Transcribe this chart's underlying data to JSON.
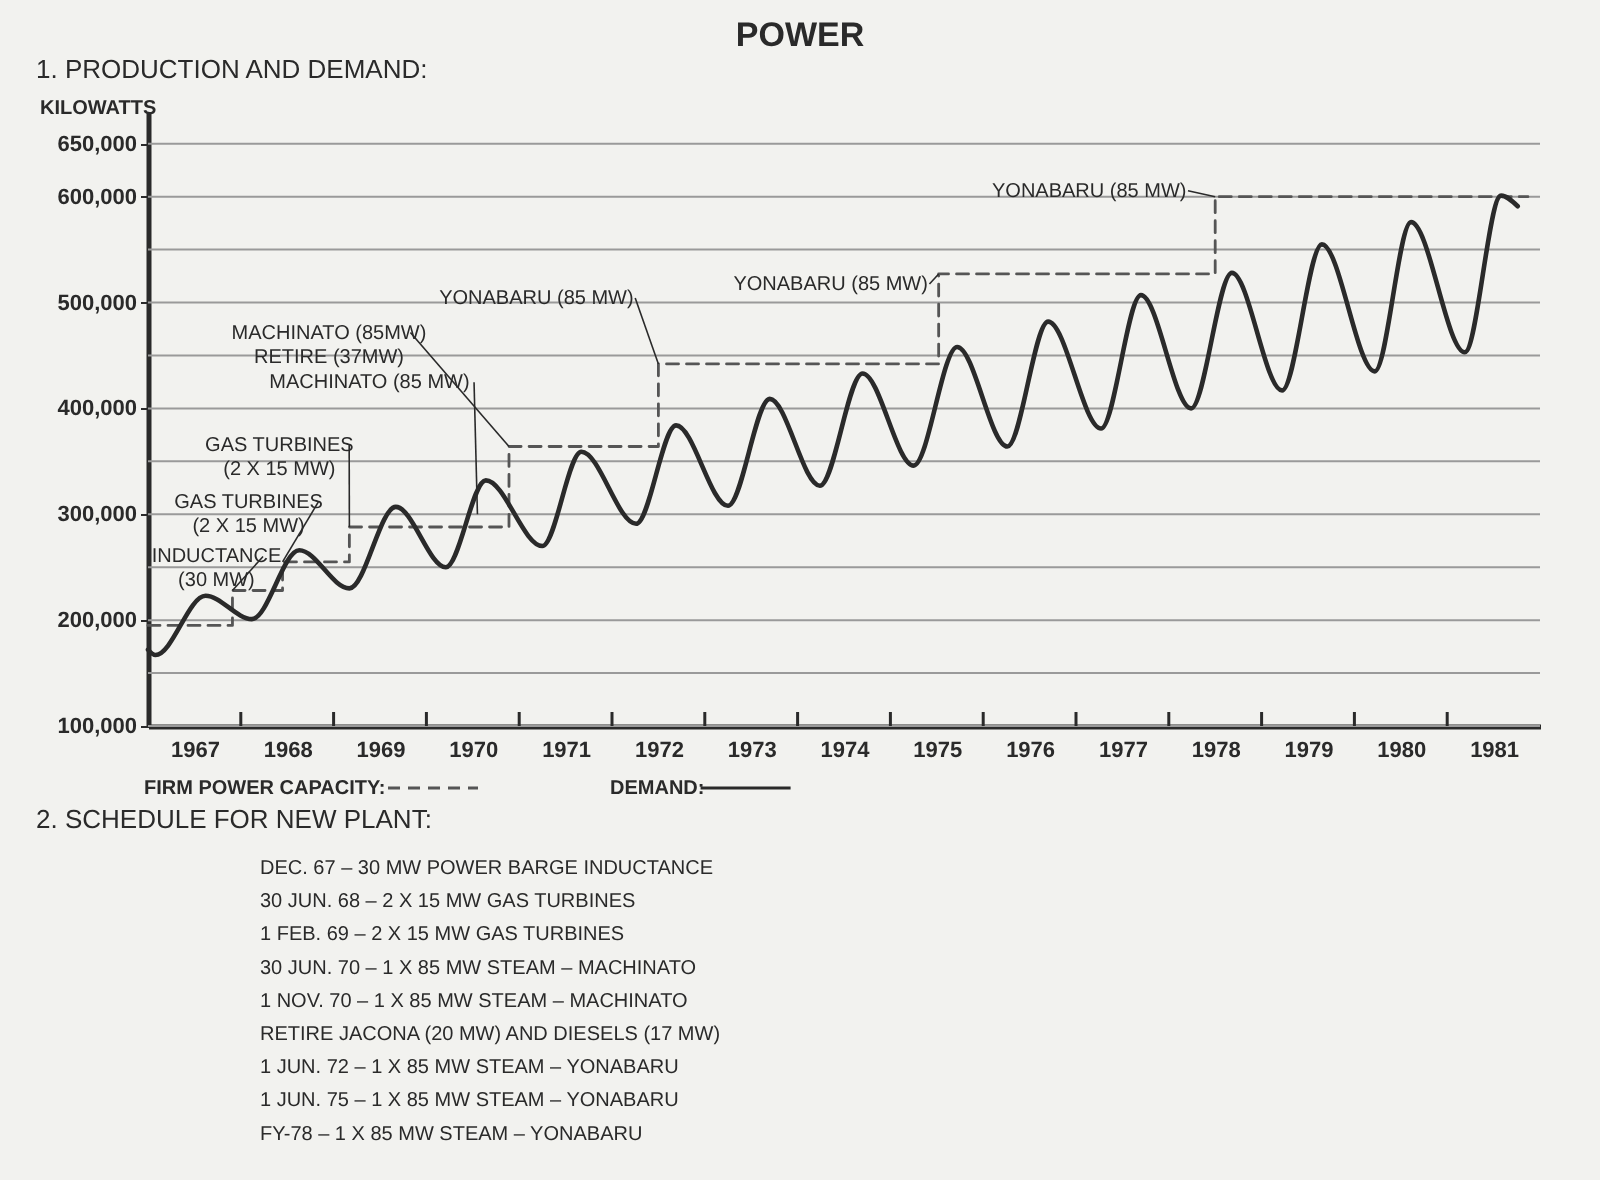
{
  "chart_data": {
    "type": "line",
    "title": "POWER",
    "subtitle": "1. PRODUCTION AND DEMAND:",
    "ylabel": "KILOWATTS",
    "xlim": [
      1967,
      1982
    ],
    "ylim": [
      100000,
      680000
    ],
    "xticks": [
      {
        "value": 1967.5,
        "label": "1967"
      },
      {
        "value": 1968,
        "label": null
      },
      {
        "value": 1968.5,
        "label": "1968"
      },
      {
        "value": 1969,
        "label": null
      },
      {
        "value": 1969.5,
        "label": "1969"
      },
      {
        "value": 1970,
        "label": null
      },
      {
        "value": 1970.5,
        "label": "1970"
      },
      {
        "value": 1971,
        "label": null
      },
      {
        "value": 1971.5,
        "label": "1971"
      },
      {
        "value": 1972,
        "label": null
      },
      {
        "value": 1972.5,
        "label": "1972"
      },
      {
        "value": 1973,
        "label": null
      },
      {
        "value": 1973.5,
        "label": "1973"
      },
      {
        "value": 1974,
        "label": null
      },
      {
        "value": 1974.5,
        "label": "1974"
      },
      {
        "value": 1975,
        "label": null
      },
      {
        "value": 1975.5,
        "label": "1975"
      },
      {
        "value": 1976,
        "label": null
      },
      {
        "value": 1976.5,
        "label": "1976"
      },
      {
        "value": 1977,
        "label": null
      },
      {
        "value": 1977.5,
        "label": "1977"
      },
      {
        "value": 1978,
        "label": null
      },
      {
        "value": 1978.5,
        "label": "1978"
      },
      {
        "value": 1979,
        "label": null
      },
      {
        "value": 1979.5,
        "label": "1979"
      },
      {
        "value": 1980,
        "label": null
      },
      {
        "value": 1980.5,
        "label": "1980"
      },
      {
        "value": 1981,
        "label": null
      },
      {
        "value": 1981.5,
        "label": "1981"
      }
    ],
    "yticks": [
      {
        "value": 100000,
        "label": "100,000"
      },
      {
        "value": 150000,
        "label": null
      },
      {
        "value": 200000,
        "label": "200,000"
      },
      {
        "value": 250000,
        "label": null
      },
      {
        "value": 300000,
        "label": "300,000"
      },
      {
        "value": 350000,
        "label": null
      },
      {
        "value": 400000,
        "label": "400,000"
      },
      {
        "value": 450000,
        "label": null
      },
      {
        "value": 500000,
        "label": "500,000"
      },
      {
        "value": 550000,
        "label": null
      },
      {
        "value": 600000,
        "label": "600,000"
      },
      {
        "value": 650000,
        "label": "650,000"
      }
    ],
    "grid": "y",
    "legend": "bottom",
    "marker": "none",
    "series": [
      {
        "name": "FIRM POWER CAPACITY:",
        "type": "step",
        "line_style": "dashed",
        "color": "#555555",
        "x": [
          1967.0,
          1967.91,
          1968.45,
          1969.17,
          1970.89,
          1972.5,
          1975.52,
          1978.5,
          1981.87
        ],
        "values": [
          195000,
          228000,
          255000,
          288000,
          364000,
          442000,
          527000,
          600000,
          600000
        ]
      },
      {
        "name": "DEMAND:",
        "type": "line",
        "line_style": "solid",
        "color": "#2a2a2a",
        "x": [
          1967.0,
          1967.08,
          1967.62,
          1968.12,
          1968.63,
          1969.17,
          1969.67,
          1970.21,
          1970.64,
          1971.25,
          1971.67,
          1972.26,
          1972.69,
          1973.25,
          1973.7,
          1974.24,
          1974.7,
          1975.25,
          1975.72,
          1976.26,
          1976.7,
          1977.27,
          1977.7,
          1978.24,
          1978.68,
          1979.22,
          1979.65,
          1980.22,
          1980.61,
          1981.19,
          1981.58,
          1981.76
        ],
        "values": [
          172000,
          167000,
          223000,
          201000,
          266000,
          230000,
          307000,
          250000,
          332000,
          270000,
          359000,
          291000,
          384000,
          308000,
          409000,
          327000,
          433000,
          346000,
          458000,
          364000,
          482000,
          381000,
          507000,
          400000,
          528000,
          417000,
          555000,
          435000,
          576000,
          453000,
          601000,
          591000
        ]
      }
    ],
    "annotations": [
      {
        "text": "INDUCTANCE\n(30 MW)",
        "x": 1967.91,
        "y": 228000
      },
      {
        "text": "GAS TURBINES\n(2 X 15 MW)",
        "x": 1968.45,
        "y": 255000
      },
      {
        "text": "GAS TURBINES\n(2 X 15 MW)",
        "x": 1969.17,
        "y": 288000
      },
      {
        "text": "MACHINATO (85 MW)",
        "x": 1970.55,
        "y": 300000
      },
      {
        "text": "MACHINATO (85MW)\nRETIRE (37MW)",
        "x": 1970.89,
        "y": 364000
      },
      {
        "text": "YONABARU (85 MW)",
        "x": 1972.5,
        "y": 442000
      },
      {
        "text": "YONABARU (85 MW)",
        "x": 1975.52,
        "y": 527000
      },
      {
        "text": "YONABARU (85 MW)",
        "x": 1978.5,
        "y": 600000
      },
      "2. SCHEDULE FOR NEW PLANT:",
      "DEC. 67 – 30 MW POWER BARGE INDUCTANCE",
      "30 JUN. 68 – 2 X 15 MW GAS TURBINES",
      "1 FEB. 69 – 2 X 15 MW GAS TURBINES",
      "30 JUN. 70 – 1 X 85 MW STEAM – MACHINATO",
      "1 NOV. 70 – 1 X 85 MW STEAM – MACHINATO",
      "RETIRE JACONA (20 MW) AND DIESELS (17 MW)",
      "1 JUN. 72 – 1 X 85 MW STEAM – YONABARU",
      "1 JUN. 75 – 1 X 85 MW STEAM – YONABARU",
      "FY-78 – 1 X 85 MW STEAM – YONABARU"
    ]
  }
}
